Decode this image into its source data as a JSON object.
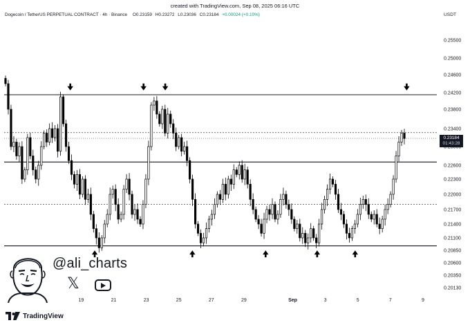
{
  "header": {
    "created": "created with TradingView.com, Sep 08, 2025 06:16 UTC",
    "symbol": "Dogecoin / TetherUS PERPETUAL CONTRACT · 4h · Binance",
    "open": "O0.23159",
    "high": "H0.23272",
    "low": "L0.23036",
    "close": "C0.23184",
    "change": "+0.00024 (+0.10%)",
    "unit": "USDT"
  },
  "price_label": {
    "value": "0.23184",
    "countdown": "01:43:28"
  },
  "branding": {
    "handle": "@ali_charts",
    "x_icon": "x-logo-icon",
    "youtube_icon": "youtube-icon",
    "footer": "TradingView",
    "footer_icon": "tradingview-logo-icon"
  },
  "colors": {
    "candle": "#000000",
    "candle_up_fill": "#ffffff",
    "background": "#ffffff",
    "label_bg": "#131722"
  },
  "chart_data": {
    "type": "candlestick",
    "title": "",
    "ylim": [
      0.2013,
      0.2565
    ],
    "y_ticks": [
      "0.25500",
      "0.25000",
      "0.24600",
      "0.24200",
      "0.23800",
      "0.23400",
      "0.23000",
      "0.22600",
      "0.22300",
      "0.22000",
      "0.21700",
      "0.21400",
      "0.21100",
      "0.20850",
      "0.20600",
      "0.20350",
      "0.20130"
    ],
    "x_ticks": [
      {
        "label": "19",
        "date": "2025-08-19"
      },
      {
        "label": "21",
        "date": "2025-08-21"
      },
      {
        "label": "23",
        "date": "2025-08-23"
      },
      {
        "label": "25",
        "date": "2025-08-25"
      },
      {
        "label": "27",
        "date": "2025-08-27"
      },
      {
        "label": "29",
        "date": "2025-08-29"
      },
      {
        "label": "Sep",
        "date": "2025-09-01"
      },
      {
        "label": "3",
        "date": "2025-09-03"
      },
      {
        "label": "5",
        "date": "2025-09-05"
      },
      {
        "label": "7",
        "date": "2025-09-07"
      },
      {
        "label": "9",
        "date": "2025-09-09"
      }
    ],
    "horizontal_levels": [
      {
        "value": 0.2415,
        "style": "solid"
      },
      {
        "value": 0.2267,
        "style": "solid"
      },
      {
        "value": 0.2094,
        "style": "solid"
      },
      {
        "value": 0.2331,
        "style": "dotted"
      },
      {
        "value": 0.218,
        "style": "dotted"
      }
    ],
    "down_arrows": [
      {
        "date": "2025-08-18T08:00",
        "price": 0.2428
      },
      {
        "date": "2025-08-22T20:00",
        "price": 0.2428
      },
      {
        "date": "2025-08-24T04:00",
        "price": 0.2428
      },
      {
        "date": "2025-09-08T00:00",
        "price": 0.2428
      }
    ],
    "up_arrows": [
      {
        "date": "2025-08-19T20:00",
        "price": 0.2082
      },
      {
        "date": "2025-08-25T20:00",
        "price": 0.2082
      },
      {
        "date": "2025-08-30T08:00",
        "price": 0.2082
      },
      {
        "date": "2025-09-02T12:00",
        "price": 0.2082
      },
      {
        "date": "2025-09-04T20:00",
        "price": 0.2082
      }
    ],
    "candles_close": [
      0.244,
      0.238,
      0.23,
      0.231,
      0.228,
      0.23,
      0.223,
      0.225,
      0.232,
      0.228,
      0.225,
      0.223,
      0.226,
      0.23,
      0.233,
      0.231,
      0.234,
      0.232,
      0.234,
      0.229,
      0.241,
      0.235,
      0.23,
      0.227,
      0.224,
      0.222,
      0.224,
      0.22,
      0.223,
      0.219,
      0.22,
      0.216,
      0.213,
      0.211,
      0.209,
      0.211,
      0.214,
      0.216,
      0.22,
      0.221,
      0.218,
      0.215,
      0.216,
      0.221,
      0.223,
      0.22,
      0.216,
      0.217,
      0.215,
      0.214,
      0.218,
      0.223,
      0.23,
      0.239,
      0.24,
      0.237,
      0.235,
      0.238,
      0.233,
      0.237,
      0.235,
      0.233,
      0.23,
      0.232,
      0.229,
      0.23,
      0.227,
      0.223,
      0.219,
      0.214,
      0.212,
      0.21,
      0.211,
      0.213,
      0.215,
      0.216,
      0.218,
      0.22,
      0.219,
      0.222,
      0.22,
      0.223,
      0.222,
      0.225,
      0.224,
      0.226,
      0.223,
      0.225,
      0.222,
      0.219,
      0.217,
      0.215,
      0.214,
      0.212,
      0.215,
      0.217,
      0.216,
      0.218,
      0.215,
      0.216,
      0.219,
      0.22,
      0.218,
      0.217,
      0.215,
      0.213,
      0.214,
      0.211,
      0.212,
      0.21,
      0.211,
      0.213,
      0.211,
      0.21,
      0.214,
      0.217,
      0.219,
      0.221,
      0.223,
      0.222,
      0.22,
      0.217,
      0.216,
      0.214,
      0.212,
      0.211,
      0.213,
      0.214,
      0.216,
      0.218,
      0.219,
      0.218,
      0.216,
      0.215,
      0.216,
      0.214,
      0.213,
      0.215,
      0.217,
      0.218,
      0.22,
      0.223,
      0.228,
      0.231,
      0.233,
      0.2318
    ]
  }
}
